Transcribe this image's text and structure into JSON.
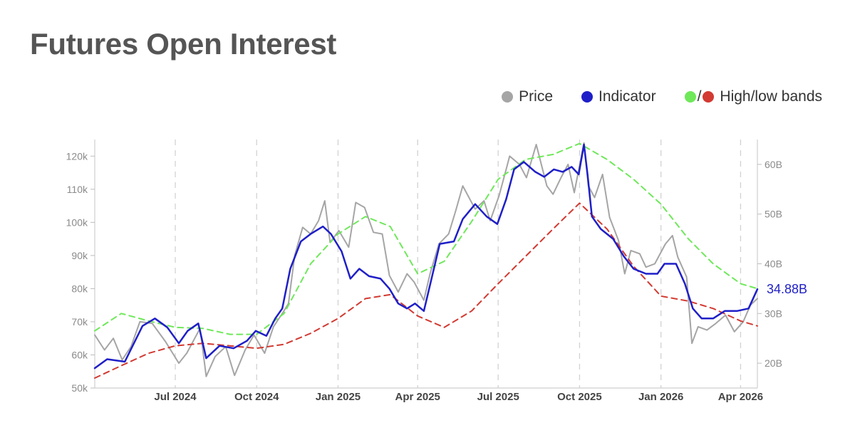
{
  "page": {
    "title": "Futures Open Interest"
  },
  "legend": {
    "price": {
      "label": "Price",
      "color": "#a5a5a5"
    },
    "indicator": {
      "label": "Indicator",
      "color": "#1f1fc8"
    },
    "bands": {
      "label": "High/low bands",
      "separator": "/",
      "high_color": "#6fe85a",
      "low_color": "#d23a32"
    }
  },
  "chart_data": {
    "type": "line",
    "title": "Futures Open Interest",
    "x_start": "2024-04-01",
    "x_end": "2026-04-20",
    "x_ticks": [
      {
        "date": "2024-07-01",
        "label": "Jul 2024"
      },
      {
        "date": "2024-10-01",
        "label": "Oct 2024"
      },
      {
        "date": "2025-01-01",
        "label": "Jan 2025"
      },
      {
        "date": "2025-04-01",
        "label": "Apr 2025"
      },
      {
        "date": "2025-07-01",
        "label": "Jul 2025"
      },
      {
        "date": "2025-10-01",
        "label": "Oct 2025"
      },
      {
        "date": "2026-01-01",
        "label": "Jan 2026"
      },
      {
        "date": "2026-04-01",
        "label": "Apr 2026"
      }
    ],
    "y_left": {
      "min": 50000,
      "max": 125000,
      "ticks": [
        50000,
        60000,
        70000,
        80000,
        90000,
        100000,
        110000,
        120000
      ],
      "tick_labels": [
        "50k",
        "60k",
        "70k",
        "80k",
        "90k",
        "100k",
        "110k",
        "120k"
      ]
    },
    "y_right": {
      "min": 15,
      "max": 65,
      "unit": "B",
      "ticks": [
        20,
        30,
        40,
        50,
        60
      ],
      "tick_labels": [
        "20B",
        "30B",
        "40B",
        "50B",
        "60B"
      ]
    },
    "last_value_label": "34.88B",
    "series": [
      {
        "name": "Price",
        "axis": "left",
        "color": "#a5a5a5",
        "dash": "none",
        "width": 2,
        "points": [
          [
            "2024-04-01",
            66000
          ],
          [
            "2024-04-12",
            61500
          ],
          [
            "2024-04-22",
            65000
          ],
          [
            "2024-05-02",
            58500
          ],
          [
            "2024-05-12",
            62500
          ],
          [
            "2024-05-22",
            70000
          ],
          [
            "2024-06-05",
            69500
          ],
          [
            "2024-06-20",
            64000
          ],
          [
            "2024-07-05",
            57500
          ],
          [
            "2024-07-14",
            60500
          ],
          [
            "2024-07-29",
            68000
          ],
          [
            "2024-08-05",
            53500
          ],
          [
            "2024-08-15",
            59500
          ],
          [
            "2024-08-27",
            62500
          ],
          [
            "2024-09-06",
            53800
          ],
          [
            "2024-09-18",
            61500
          ],
          [
            "2024-09-28",
            66000
          ],
          [
            "2024-10-10",
            60500
          ],
          [
            "2024-10-20",
            68500
          ],
          [
            "2024-10-30",
            72500
          ],
          [
            "2024-11-06",
            75500
          ],
          [
            "2024-11-13",
            90000
          ],
          [
            "2024-11-22",
            98500
          ],
          [
            "2024-12-01",
            96500
          ],
          [
            "2024-12-10",
            100500
          ],
          [
            "2024-12-17",
            106500
          ],
          [
            "2024-12-23",
            94000
          ],
          [
            "2025-01-02",
            97500
          ],
          [
            "2025-01-13",
            92500
          ],
          [
            "2025-01-21",
            106000
          ],
          [
            "2025-01-31",
            104500
          ],
          [
            "2025-02-10",
            97000
          ],
          [
            "2025-02-20",
            96500
          ],
          [
            "2025-02-28",
            84000
          ],
          [
            "2025-03-10",
            79000
          ],
          [
            "2025-03-20",
            84500
          ],
          [
            "2025-03-28",
            82000
          ],
          [
            "2025-04-08",
            76500
          ],
          [
            "2025-04-15",
            84500
          ],
          [
            "2025-04-25",
            93500
          ],
          [
            "2025-05-06",
            96500
          ],
          [
            "2025-05-14",
            103500
          ],
          [
            "2025-05-22",
            111000
          ],
          [
            "2025-06-05",
            104000
          ],
          [
            "2025-06-15",
            106500
          ],
          [
            "2025-06-22",
            100500
          ],
          [
            "2025-07-02",
            108000
          ],
          [
            "2025-07-10",
            116000
          ],
          [
            "2025-07-14",
            120000
          ],
          [
            "2025-07-25",
            117500
          ],
          [
            "2025-08-02",
            113500
          ],
          [
            "2025-08-13",
            123500
          ],
          [
            "2025-08-25",
            111000
          ],
          [
            "2025-09-01",
            108500
          ],
          [
            "2025-09-10",
            113500
          ],
          [
            "2025-09-18",
            117500
          ],
          [
            "2025-09-25",
            109000
          ],
          [
            "2025-10-06",
            124000
          ],
          [
            "2025-10-11",
            111000
          ],
          [
            "2025-10-18",
            107500
          ],
          [
            "2025-10-27",
            114500
          ],
          [
            "2025-11-04",
            101500
          ],
          [
            "2025-11-14",
            94500
          ],
          [
            "2025-11-21",
            84500
          ],
          [
            "2025-11-28",
            91500
          ],
          [
            "2025-12-08",
            90500
          ],
          [
            "2025-12-15",
            86500
          ],
          [
            "2025-12-25",
            87500
          ],
          [
            "2026-01-06",
            93500
          ],
          [
            "2026-01-14",
            96000
          ],
          [
            "2026-01-20",
            89500
          ],
          [
            "2026-01-30",
            83500
          ],
          [
            "2026-02-05",
            63500
          ],
          [
            "2026-02-12",
            68500
          ],
          [
            "2026-02-22",
            67500
          ],
          [
            "2026-03-04",
            69500
          ],
          [
            "2026-03-15",
            72000
          ],
          [
            "2026-03-25",
            67000
          ],
          [
            "2026-04-04",
            70000
          ],
          [
            "2026-04-12",
            75000
          ],
          [
            "2026-04-20",
            77000
          ]
        ]
      },
      {
        "name": "High band",
        "axis": "right",
        "color": "#6fe85a",
        "dash": "8,6",
        "width": 2,
        "points": [
          [
            "2024-04-01",
            26.5
          ],
          [
            "2024-05-01",
            30.0
          ],
          [
            "2024-06-01",
            28.5
          ],
          [
            "2024-07-01",
            27.2
          ],
          [
            "2024-08-01",
            27.0
          ],
          [
            "2024-09-01",
            25.8
          ],
          [
            "2024-10-01",
            25.8
          ],
          [
            "2024-11-01",
            30.0
          ],
          [
            "2024-12-01",
            40.0
          ],
          [
            "2025-01-01",
            46.0
          ],
          [
            "2025-02-01",
            49.5
          ],
          [
            "2025-03-01",
            47.5
          ],
          [
            "2025-04-01",
            38.0
          ],
          [
            "2025-05-01",
            40.5
          ],
          [
            "2025-06-01",
            48.5
          ],
          [
            "2025-07-01",
            57.0
          ],
          [
            "2025-08-01",
            61.0
          ],
          [
            "2025-09-01",
            62.0
          ],
          [
            "2025-10-01",
            64.2
          ],
          [
            "2025-11-01",
            61.0
          ],
          [
            "2025-12-01",
            57.0
          ],
          [
            "2026-01-01",
            52.0
          ],
          [
            "2026-02-01",
            45.0
          ],
          [
            "2026-03-01",
            40.0
          ],
          [
            "2026-04-01",
            36.0
          ],
          [
            "2026-04-20",
            35.0
          ]
        ]
      },
      {
        "name": "Low band",
        "axis": "right",
        "color": "#d23a32",
        "dash": "8,6",
        "width": 2,
        "points": [
          [
            "2024-04-01",
            17.0
          ],
          [
            "2024-05-01",
            19.5
          ],
          [
            "2024-06-01",
            22.0
          ],
          [
            "2024-07-01",
            23.5
          ],
          [
            "2024-08-01",
            24.0
          ],
          [
            "2024-09-01",
            23.5
          ],
          [
            "2024-10-01",
            23.0
          ],
          [
            "2024-11-01",
            23.8
          ],
          [
            "2024-12-01",
            26.0
          ],
          [
            "2025-01-01",
            29.0
          ],
          [
            "2025-02-01",
            33.0
          ],
          [
            "2025-03-01",
            33.8
          ],
          [
            "2025-04-01",
            29.5
          ],
          [
            "2025-05-01",
            27.2
          ],
          [
            "2025-06-01",
            30.5
          ],
          [
            "2025-07-01",
            36.0
          ],
          [
            "2025-08-01",
            41.5
          ],
          [
            "2025-09-01",
            47.0
          ],
          [
            "2025-10-01",
            52.2
          ],
          [
            "2025-11-01",
            47.0
          ],
          [
            "2025-12-01",
            39.5
          ],
          [
            "2026-01-01",
            33.5
          ],
          [
            "2026-02-01",
            32.5
          ],
          [
            "2026-03-01",
            31.0
          ],
          [
            "2026-04-01",
            28.5
          ],
          [
            "2026-04-20",
            27.5
          ]
        ]
      },
      {
        "name": "Indicator",
        "axis": "right",
        "color": "#1f1fc8",
        "dash": "none",
        "width": 2.5,
        "points": [
          [
            "2024-04-01",
            19.0
          ],
          [
            "2024-04-15",
            20.8
          ],
          [
            "2024-05-05",
            20.3
          ],
          [
            "2024-05-25",
            27.5
          ],
          [
            "2024-06-08",
            29.0
          ],
          [
            "2024-06-22",
            27.2
          ],
          [
            "2024-07-05",
            24.0
          ],
          [
            "2024-07-15",
            26.5
          ],
          [
            "2024-07-27",
            28.0
          ],
          [
            "2024-08-05",
            21.0
          ],
          [
            "2024-08-20",
            23.5
          ],
          [
            "2024-09-05",
            23.0
          ],
          [
            "2024-09-20",
            24.5
          ],
          [
            "2024-09-30",
            26.5
          ],
          [
            "2024-10-12",
            25.5
          ],
          [
            "2024-10-22",
            29.0
          ],
          [
            "2024-10-30",
            31.0
          ],
          [
            "2024-11-08",
            39.0
          ],
          [
            "2024-11-20",
            44.5
          ],
          [
            "2024-12-01",
            46.0
          ],
          [
            "2024-12-15",
            47.5
          ],
          [
            "2024-12-24",
            46.0
          ],
          [
            "2025-01-05",
            42.5
          ],
          [
            "2025-01-15",
            37.0
          ],
          [
            "2025-01-25",
            39.0
          ],
          [
            "2025-02-05",
            37.5
          ],
          [
            "2025-02-18",
            37.0
          ],
          [
            "2025-02-28",
            35.0
          ],
          [
            "2025-03-10",
            32.0
          ],
          [
            "2025-03-20",
            31.0
          ],
          [
            "2025-03-29",
            32.0
          ],
          [
            "2025-04-08",
            30.5
          ],
          [
            "2025-04-18",
            38.0
          ],
          [
            "2025-04-26",
            44.0
          ],
          [
            "2025-05-12",
            44.5
          ],
          [
            "2025-05-22",
            49.0
          ],
          [
            "2025-06-05",
            52.0
          ],
          [
            "2025-06-18",
            49.5
          ],
          [
            "2025-06-30",
            48.0
          ],
          [
            "2025-07-10",
            53.0
          ],
          [
            "2025-07-19",
            59.0
          ],
          [
            "2025-07-30",
            60.5
          ],
          [
            "2025-08-12",
            58.5
          ],
          [
            "2025-08-22",
            57.5
          ],
          [
            "2025-09-02",
            59.0
          ],
          [
            "2025-09-12",
            58.5
          ],
          [
            "2025-09-22",
            59.5
          ],
          [
            "2025-09-30",
            58.0
          ],
          [
            "2025-10-06",
            64.0
          ],
          [
            "2025-10-10",
            58.0
          ],
          [
            "2025-10-15",
            49.5
          ],
          [
            "2025-10-25",
            47.0
          ],
          [
            "2025-11-08",
            45.0
          ],
          [
            "2025-11-20",
            41.5
          ],
          [
            "2025-12-01",
            39.0
          ],
          [
            "2025-12-15",
            38.0
          ],
          [
            "2025-12-28",
            38.0
          ],
          [
            "2026-01-05",
            40.0
          ],
          [
            "2026-01-18",
            40.0
          ],
          [
            "2026-01-28",
            36.0
          ],
          [
            "2026-02-06",
            31.0
          ],
          [
            "2026-02-16",
            29.0
          ],
          [
            "2026-03-01",
            29.0
          ],
          [
            "2026-03-14",
            30.5
          ],
          [
            "2026-03-28",
            30.5
          ],
          [
            "2026-04-10",
            31.0
          ],
          [
            "2026-04-20",
            34.88
          ]
        ]
      }
    ]
  }
}
